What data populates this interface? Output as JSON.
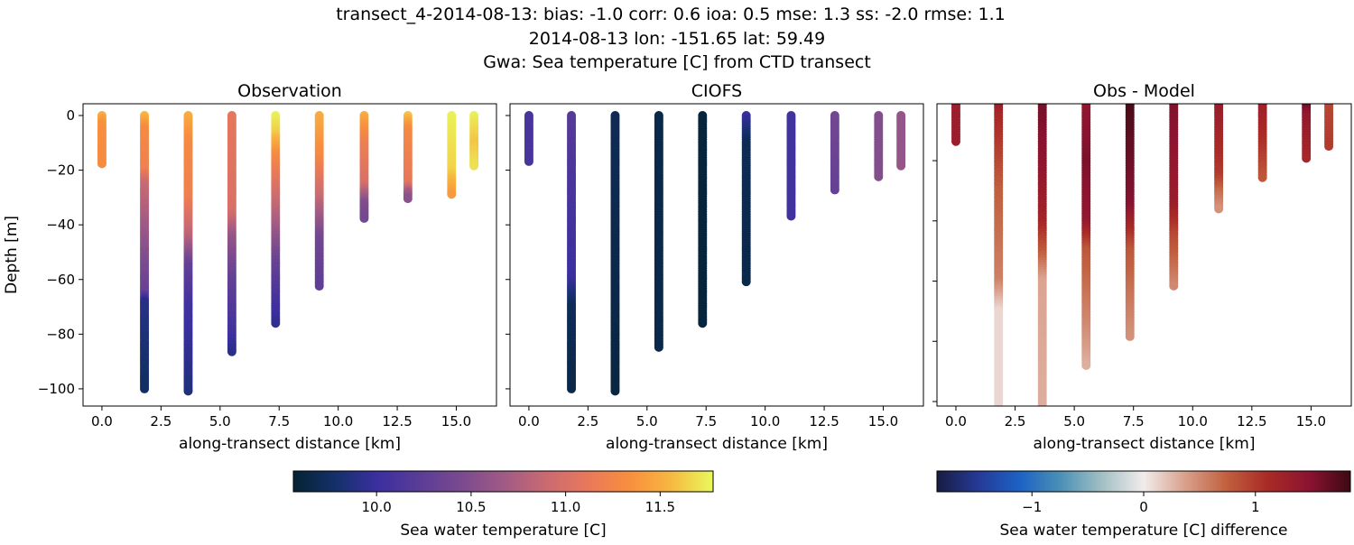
{
  "suptitle": [
    "transect_4-2014-08-13: bias: -1.0  corr: 0.6  ioa: 0.5  mse: 1.3  ss: -2.0  rmse: 1.1",
    "2014-08-13 lon: -151.65 lat: 59.49",
    "Gwa: Sea temperature [C] from CTD transect"
  ],
  "chart_data": [
    {
      "type": "scatter",
      "title": "Observation",
      "xlabel": "along-transect distance [km]",
      "ylabel": "Depth [m]",
      "xlim": [
        -0.8,
        16.7
      ],
      "ylim": [
        -106.3,
        4.3
      ],
      "xticks": [
        "0.0",
        "2.5",
        "5.0",
        "7.5",
        "10.0",
        "12.5",
        "15.0"
      ],
      "yticks": [
        "0",
        "−20",
        "−40",
        "−60",
        "−80",
        "−100"
      ],
      "colormap": "thermal",
      "profiles": [
        {
          "x": 0.0,
          "bottom": -18,
          "values": [
            [
              0,
              11.5
            ],
            [
              -3,
              11.35
            ],
            [
              -18,
              11.3
            ]
          ]
        },
        {
          "x": 1.8,
          "bottom": -100,
          "values": [
            [
              0,
              11.55
            ],
            [
              -5,
              11.3
            ],
            [
              -20,
              11.2
            ],
            [
              -25,
              10.9
            ],
            [
              -45,
              10.6
            ],
            [
              -65,
              10.3
            ],
            [
              -68,
              9.9
            ],
            [
              -100,
              9.75
            ]
          ]
        },
        {
          "x": 3.65,
          "bottom": -101,
          "values": [
            [
              0,
              11.5
            ],
            [
              -10,
              11.3
            ],
            [
              -30,
              11.2
            ],
            [
              -45,
              10.8
            ],
            [
              -55,
              10.3
            ],
            [
              -70,
              10.05
            ],
            [
              -101,
              9.85
            ]
          ]
        },
        {
          "x": 5.5,
          "bottom": -87,
          "values": [
            [
              0,
              11.1
            ],
            [
              -35,
              11.0
            ],
            [
              -45,
              10.6
            ],
            [
              -60,
              10.3
            ],
            [
              -80,
              10.05
            ],
            [
              -87,
              9.9
            ]
          ]
        },
        {
          "x": 7.35,
          "bottom": -76,
          "values": [
            [
              0,
              11.75
            ],
            [
              -6,
              11.65
            ],
            [
              -15,
              11.3
            ],
            [
              -25,
              11.05
            ],
            [
              -40,
              10.7
            ],
            [
              -55,
              10.3
            ],
            [
              -70,
              10.05
            ],
            [
              -76,
              9.95
            ]
          ]
        },
        {
          "x": 9.2,
          "bottom": -63,
          "values": [
            [
              0,
              11.5
            ],
            [
              -15,
              11.3
            ],
            [
              -30,
              10.9
            ],
            [
              -45,
              10.4
            ],
            [
              -63,
              10.25
            ]
          ]
        },
        {
          "x": 11.1,
          "bottom": -38,
          "values": [
            [
              0,
              11.5
            ],
            [
              -10,
              11.2
            ],
            [
              -25,
              11.0
            ],
            [
              -32,
              10.5
            ],
            [
              -38,
              10.4
            ]
          ]
        },
        {
          "x": 12.95,
          "bottom": -31,
          "values": [
            [
              0,
              11.6
            ],
            [
              -5,
              11.3
            ],
            [
              -25,
              11.1
            ],
            [
              -28,
              10.7
            ],
            [
              -31,
              10.5
            ]
          ]
        },
        {
          "x": 14.8,
          "bottom": -29,
          "values": [
            [
              0,
              11.75
            ],
            [
              -20,
              11.65
            ],
            [
              -29,
              11.4
            ]
          ]
        },
        {
          "x": 15.75,
          "bottom": -19,
          "values": [
            [
              0,
              11.75
            ],
            [
              -10,
              11.6
            ],
            [
              -19,
              11.7
            ]
          ]
        }
      ]
    },
    {
      "type": "scatter",
      "title": "CIOFS",
      "xlabel": "along-transect distance [km]",
      "xlim": [
        -0.8,
        16.7
      ],
      "ylim": [
        -106.3,
        4.3
      ],
      "xticks": [
        "0.0",
        "2.5",
        "5.0",
        "7.5",
        "10.0",
        "12.5",
        "15.0"
      ],
      "colormap": "thermal",
      "profiles": [
        {
          "x": 0.0,
          "bottom": -17,
          "values": [
            [
              0,
              10.1
            ],
            [
              -17,
              10.1
            ]
          ]
        },
        {
          "x": 1.8,
          "bottom": -100,
          "values": [
            [
              0,
              10.2
            ],
            [
              -30,
              10.1
            ],
            [
              -60,
              10.0
            ],
            [
              -70,
              9.7
            ],
            [
              -100,
              9.65
            ]
          ]
        },
        {
          "x": 3.65,
          "bottom": -101,
          "values": [
            [
              0,
              9.7
            ],
            [
              -101,
              9.62
            ]
          ]
        },
        {
          "x": 5.5,
          "bottom": -85,
          "values": [
            [
              0,
              9.65
            ],
            [
              -85,
              9.65
            ]
          ]
        },
        {
          "x": 7.35,
          "bottom": -76,
          "values": [
            [
              0,
              9.6
            ],
            [
              -76,
              9.6
            ]
          ]
        },
        {
          "x": 9.2,
          "bottom": -61,
          "values": [
            [
              0,
              10.0
            ],
            [
              -10,
              9.7
            ],
            [
              -61,
              9.65
            ]
          ]
        },
        {
          "x": 11.1,
          "bottom": -37,
          "values": [
            [
              0,
              10.05
            ],
            [
              -37,
              10.05
            ]
          ]
        },
        {
          "x": 12.95,
          "bottom": -28,
          "values": [
            [
              0,
              10.4
            ],
            [
              -28,
              10.3
            ]
          ]
        },
        {
          "x": 14.8,
          "bottom": -23,
          "values": [
            [
              0,
              10.5
            ],
            [
              -23,
              10.5
            ]
          ]
        },
        {
          "x": 15.75,
          "bottom": -19,
          "values": [
            [
              0,
              10.6
            ],
            [
              -19,
              10.6
            ]
          ]
        }
      ]
    },
    {
      "type": "scatter",
      "title": "Obs - Model",
      "xlabel": "along-transect distance [km]",
      "xlim": [
        -0.8,
        16.7
      ],
      "ylim": [
        -101.5,
        -1.1
      ],
      "xticks": [
        "0.0",
        "2.5",
        "5.0",
        "7.5",
        "10.0",
        "12.5",
        "15.0"
      ],
      "colormap": "balance",
      "profiles": [
        {
          "x": 0.0,
          "bottom": -14,
          "values": [
            [
              0,
              1.3
            ],
            [
              -14,
              1.3
            ]
          ]
        },
        {
          "x": 1.8,
          "bottom": -105,
          "values": [
            [
              0,
              1.4
            ],
            [
              -5,
              1.15
            ],
            [
              -30,
              0.75
            ],
            [
              -60,
              0.55
            ],
            [
              -70,
              0.1
            ],
            [
              -105,
              0.1
            ]
          ]
        },
        {
          "x": 3.65,
          "bottom": -105,
          "values": [
            [
              0,
              1.6
            ],
            [
              -25,
              1.4
            ],
            [
              -40,
              1.2
            ],
            [
              -50,
              0.8
            ],
            [
              -60,
              0.35
            ],
            [
              -105,
              0.3
            ]
          ]
        },
        {
          "x": 5.5,
          "bottom": -88,
          "values": [
            [
              0,
              1.4
            ],
            [
              -20,
              1.55
            ],
            [
              -40,
              1.4
            ],
            [
              -50,
              0.8
            ],
            [
              -75,
              0.5
            ],
            [
              -88,
              0.3
            ]
          ]
        },
        {
          "x": 7.35,
          "bottom": -79,
          "values": [
            [
              0,
              1.8
            ],
            [
              -35,
              1.5
            ],
            [
              -50,
              0.8
            ],
            [
              -79,
              0.45
            ]
          ]
        },
        {
          "x": 9.2,
          "bottom": -62,
          "values": [
            [
              0,
              1.55
            ],
            [
              -35,
              1.3
            ],
            [
              -45,
              0.9
            ],
            [
              -62,
              0.5
            ]
          ]
        },
        {
          "x": 11.1,
          "bottom": -36,
          "values": [
            [
              0,
              1.35
            ],
            [
              -25,
              1.0
            ],
            [
              -30,
              0.7
            ],
            [
              -36,
              0.45
            ]
          ]
        },
        {
          "x": 12.95,
          "bottom": -26,
          "values": [
            [
              0,
              1.3
            ],
            [
              -15,
              1.05
            ],
            [
              -26,
              0.8
            ]
          ]
        },
        {
          "x": 14.8,
          "bottom": -20,
          "values": [
            [
              0,
              1.8
            ],
            [
              -5,
              1.4
            ],
            [
              -20,
              1.15
            ]
          ]
        },
        {
          "x": 15.75,
          "bottom": -16,
          "values": [
            [
              0,
              0.9
            ],
            [
              -16,
              1.0
            ]
          ]
        }
      ]
    }
  ],
  "colorbars": [
    {
      "label": "Sea water temperature [C]",
      "range": [
        9.56,
        11.78
      ],
      "ticks": [
        10.0,
        10.5,
        11.0,
        11.5
      ],
      "tick_labels": [
        "10.0",
        "10.5",
        "11.0",
        "11.5"
      ],
      "colormap": "thermal",
      "stops": [
        "#042333",
        "#14306a",
        "#3b2fa0",
        "#5a3c97",
        "#7a4a8f",
        "#a05a85",
        "#c96a72",
        "#e8785a",
        "#f88e3e",
        "#f7b841",
        "#e8fa5b"
      ]
    },
    {
      "label": "Sea water temperature [C] difference",
      "range": [
        -1.85,
        1.85
      ],
      "ticks": [
        -1,
        0,
        1
      ],
      "tick_labels": [
        "−1",
        "0",
        "1"
      ],
      "colormap": "balance",
      "stops": [
        "#181c43",
        "#253a96",
        "#1c62c4",
        "#4b91b5",
        "#a3c0c4",
        "#f1ecec",
        "#d9a08c",
        "#c1603f",
        "#a92a26",
        "#8b1331",
        "#3c0912"
      ]
    }
  ]
}
